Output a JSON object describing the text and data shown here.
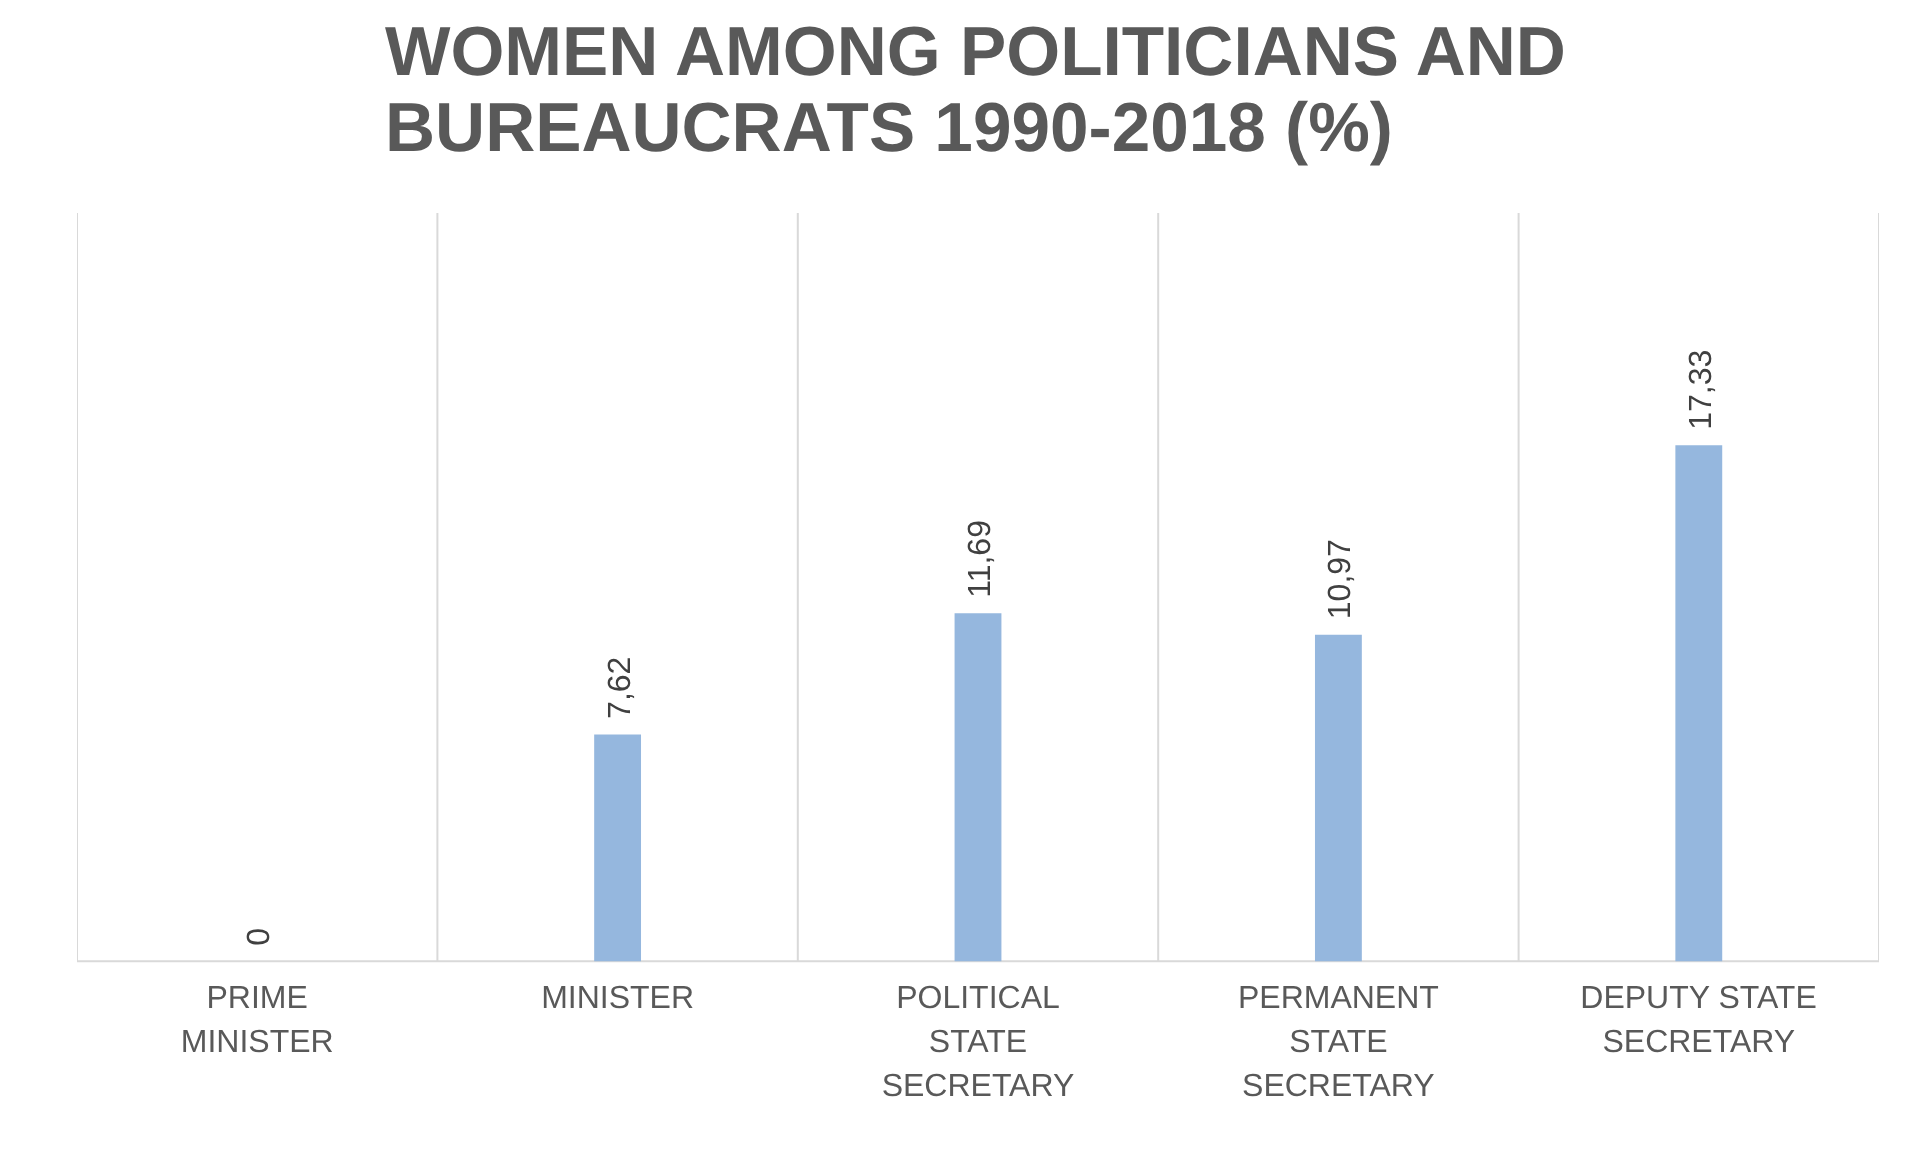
{
  "chart_data": {
    "type": "bar",
    "title": "WOMEN AMONG POLITICIANS AND BUREAUCRATS 1990-2018 (%)",
    "categories": [
      "PRIME MINISTER",
      "MINISTER",
      "POLITICAL STATE SECRETARY",
      "PERMANENT STATE SECRETARY",
      "DEPUTY STATE SECRETARY"
    ],
    "values": [
      0,
      7.62,
      11.69,
      10.97,
      17.33
    ],
    "value_labels": [
      "0",
      "7,62",
      "11,69",
      "10,97",
      "17,33"
    ],
    "color": "#95b7de",
    "grid": "x"
  }
}
